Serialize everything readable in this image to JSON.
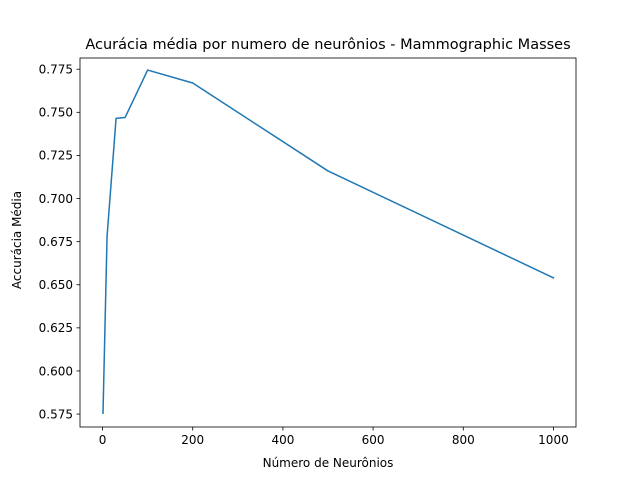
{
  "chart_data": {
    "type": "line",
    "title": "Acurácia média por numero de neurônios - Mammographic Masses",
    "xlabel": "Número de Neurônios",
    "ylabel": "Accurácia Média",
    "xlim": [
      -50,
      1050
    ],
    "ylim": [
      0.5675,
      0.7815
    ],
    "xticks": [
      0,
      200,
      400,
      600,
      800,
      1000
    ],
    "yticks": [
      0.575,
      0.6,
      0.625,
      0.65,
      0.675,
      0.7,
      0.725,
      0.75,
      0.775
    ],
    "xtick_labels": [
      "0",
      "200",
      "400",
      "600",
      "800",
      "1000"
    ],
    "ytick_labels": [
      "0.575",
      "0.600",
      "0.625",
      "0.650",
      "0.675",
      "0.700",
      "0.725",
      "0.750",
      "0.775"
    ],
    "grid": false,
    "series": [
      {
        "color": "#1f77b4",
        "x": [
          1,
          10,
          30,
          50,
          100,
          200,
          500,
          1000
        ],
        "y": [
          0.5755,
          0.678,
          0.7465,
          0.747,
          0.7745,
          0.767,
          0.716,
          0.654
        ]
      }
    ]
  }
}
